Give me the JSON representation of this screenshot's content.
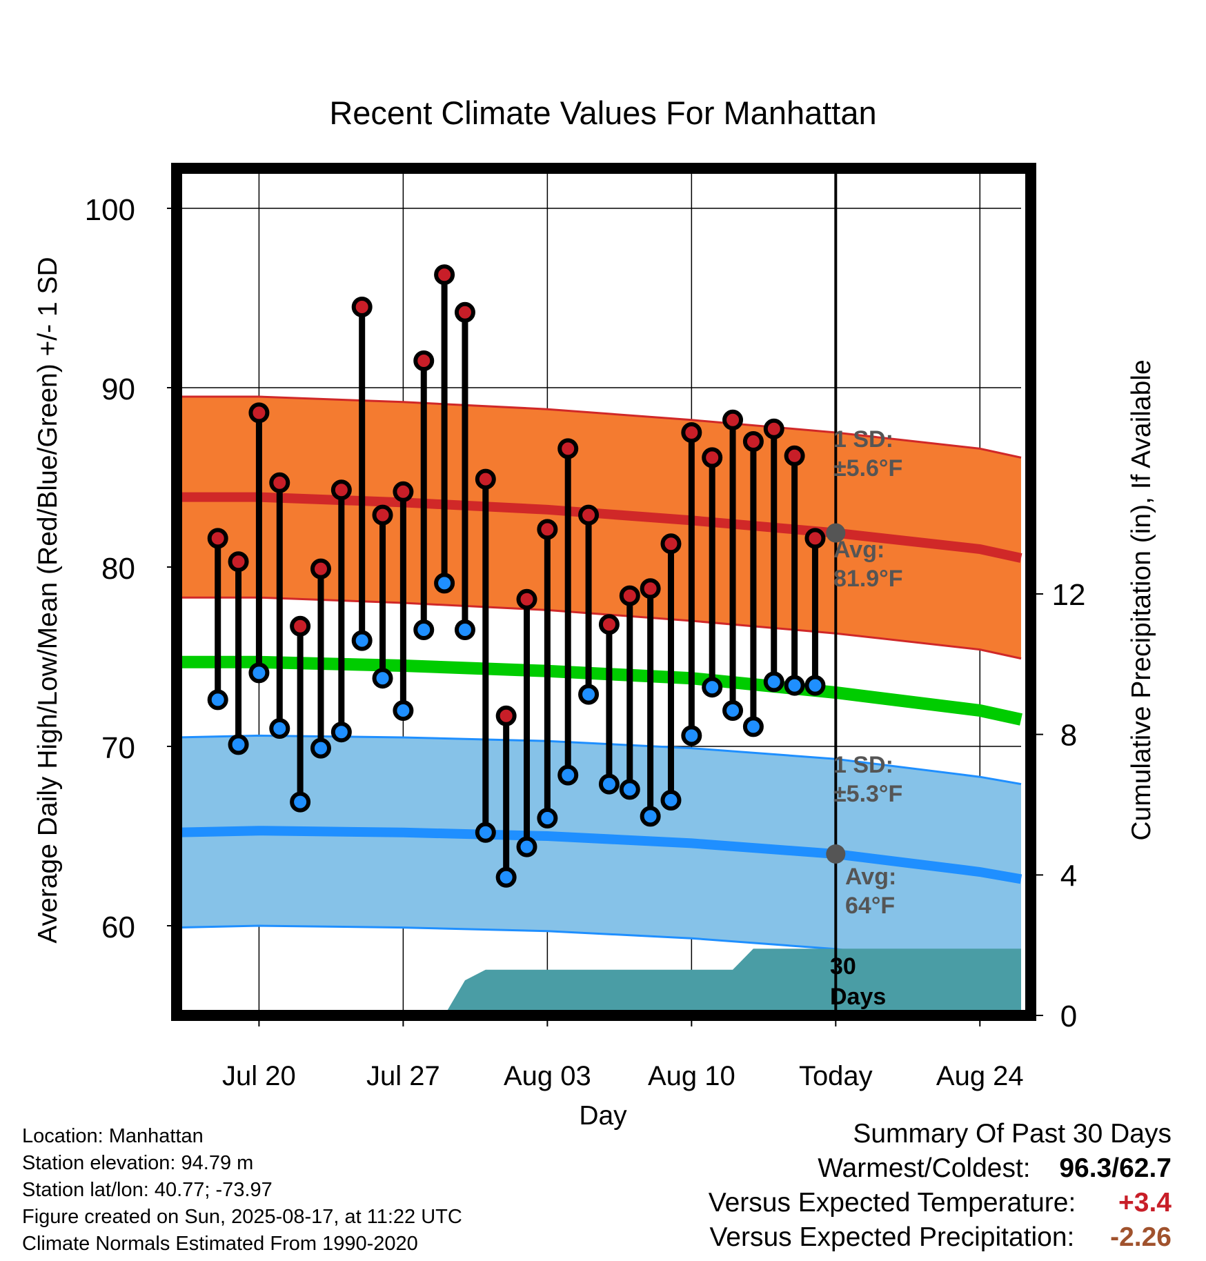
{
  "chart_data": {
    "type": "line",
    "title": "Recent Climate Values For Manhattan",
    "xlabel": "Day",
    "ylabel_left": "Average Daily High/Low/Mean (Red/Blue/Green) +/- 1 SD",
    "ylabel_right": "Cumulative Precipitation (in), If Available",
    "x_range": [
      "2025-07-16",
      "2025-08-26"
    ],
    "ylim_left": [
      55,
      102
    ],
    "ylim_right": [
      0,
      24
    ],
    "grid": true,
    "x_ticks": [
      {
        "date": "2025-07-20",
        "label": "Jul 20"
      },
      {
        "date": "2025-07-27",
        "label": "Jul 27"
      },
      {
        "date": "2025-08-03",
        "label": "Aug 03"
      },
      {
        "date": "2025-08-10",
        "label": "Aug 10"
      },
      {
        "date": "2025-08-17",
        "label": "Today"
      },
      {
        "date": "2025-08-24",
        "label": "Aug 24"
      }
    ],
    "y_ticks_left": [
      60,
      70,
      80,
      90,
      100
    ],
    "y_ticks_right": [
      0,
      4,
      8,
      12
    ],
    "today": "2025-08-17",
    "daily_highs_lows": [
      {
        "date": "2025-07-18",
        "high": 81.6,
        "low": 72.6
      },
      {
        "date": "2025-07-19",
        "high": 80.3,
        "low": 70.1
      },
      {
        "date": "2025-07-20",
        "high": 88.6,
        "low": 74.1
      },
      {
        "date": "2025-07-21",
        "high": 84.7,
        "low": 71.0
      },
      {
        "date": "2025-07-22",
        "high": 76.7,
        "low": 66.9
      },
      {
        "date": "2025-07-23",
        "high": 79.9,
        "low": 69.9
      },
      {
        "date": "2025-07-24",
        "high": 84.3,
        "low": 70.8
      },
      {
        "date": "2025-07-25",
        "high": 94.5,
        "low": 75.9
      },
      {
        "date": "2025-07-26",
        "high": 82.9,
        "low": 73.8
      },
      {
        "date": "2025-07-27",
        "high": 84.2,
        "low": 72.0
      },
      {
        "date": "2025-07-28",
        "high": 91.5,
        "low": 76.5
      },
      {
        "date": "2025-07-29",
        "high": 96.3,
        "low": 79.1
      },
      {
        "date": "2025-07-30",
        "high": 94.2,
        "low": 76.5
      },
      {
        "date": "2025-07-31",
        "high": 84.9,
        "low": 65.2
      },
      {
        "date": "2025-08-01",
        "high": 71.7,
        "low": 62.7
      },
      {
        "date": "2025-08-02",
        "high": 78.2,
        "low": 64.4
      },
      {
        "date": "2025-08-03",
        "high": 82.1,
        "low": 66.0
      },
      {
        "date": "2025-08-04",
        "high": 86.6,
        "low": 68.4
      },
      {
        "date": "2025-08-05",
        "high": 82.9,
        "low": 72.9
      },
      {
        "date": "2025-08-06",
        "high": 76.8,
        "low": 67.9
      },
      {
        "date": "2025-08-07",
        "high": 78.4,
        "low": 67.6
      },
      {
        "date": "2025-08-08",
        "high": 78.8,
        "low": 66.1
      },
      {
        "date": "2025-08-09",
        "high": 81.3,
        "low": 67.0
      },
      {
        "date": "2025-08-10",
        "high": 87.5,
        "low": 70.6
      },
      {
        "date": "2025-08-11",
        "high": 86.1,
        "low": 73.3
      },
      {
        "date": "2025-08-12",
        "high": 88.2,
        "low": 72.0
      },
      {
        "date": "2025-08-13",
        "high": 87.0,
        "low": 71.1
      },
      {
        "date": "2025-08-14",
        "high": 87.7,
        "low": 73.6
      },
      {
        "date": "2025-08-15",
        "high": 86.2,
        "low": 73.4
      },
      {
        "date": "2025-08-16",
        "high": 81.6,
        "low": 73.4
      }
    ],
    "normal_high_mean": [
      {
        "date": "2025-07-16",
        "value": 83.9
      },
      {
        "date": "2025-07-20",
        "value": 83.9
      },
      {
        "date": "2025-07-27",
        "value": 83.6
      },
      {
        "date": "2025-08-03",
        "value": 83.2
      },
      {
        "date": "2025-08-10",
        "value": 82.6
      },
      {
        "date": "2025-08-17",
        "value": 81.9
      },
      {
        "date": "2025-08-24",
        "value": 81.0
      },
      {
        "date": "2025-08-26",
        "value": 80.5
      }
    ],
    "normal_high_sd": 5.6,
    "normal_low_mean": [
      {
        "date": "2025-07-16",
        "value": 65.2
      },
      {
        "date": "2025-07-20",
        "value": 65.3
      },
      {
        "date": "2025-07-27",
        "value": 65.2
      },
      {
        "date": "2025-08-03",
        "value": 65.0
      },
      {
        "date": "2025-08-10",
        "value": 64.6
      },
      {
        "date": "2025-08-17",
        "value": 64.0
      },
      {
        "date": "2025-08-24",
        "value": 63.0
      },
      {
        "date": "2025-08-26",
        "value": 62.6
      }
    ],
    "normal_low_sd": 5.3,
    "normal_mean": [
      {
        "date": "2025-07-16",
        "value": 74.7
      },
      {
        "date": "2025-07-20",
        "value": 74.7
      },
      {
        "date": "2025-07-27",
        "value": 74.5
      },
      {
        "date": "2025-08-03",
        "value": 74.2
      },
      {
        "date": "2025-08-10",
        "value": 73.8
      },
      {
        "date": "2025-08-17",
        "value": 73.0
      },
      {
        "date": "2025-08-24",
        "value": 72.0
      },
      {
        "date": "2025-08-26",
        "value": 71.5
      }
    ],
    "cumulative_precip": [
      {
        "date": "2025-07-16",
        "value": 0
      },
      {
        "date": "2025-07-29",
        "value": 0
      },
      {
        "date": "2025-07-30",
        "value": 1.0
      },
      {
        "date": "2025-07-31",
        "value": 1.3
      },
      {
        "date": "2025-08-12",
        "value": 1.3
      },
      {
        "date": "2025-08-13",
        "value": 1.9
      },
      {
        "date": "2025-08-26",
        "value": 1.9
      }
    ],
    "annotations": {
      "high_sd": [
        "1 SD:",
        "±5.6°F"
      ],
      "high_avg": [
        "Avg:",
        "81.9°F"
      ],
      "low_sd": [
        "1 SD:",
        "±5.3°F"
      ],
      "low_avg": [
        "Avg:",
        "64°F"
      ],
      "precip_days": [
        "30",
        "Days"
      ]
    },
    "colors": {
      "high_band": "#f47b30",
      "high_line": "#d02828",
      "low_band": "#86c2e8",
      "low_line": "#1f8fff",
      "mean_line": "#00cc00",
      "precip_fill": "#4a9da5",
      "high_marker": "#c81e28",
      "low_marker": "#1f8fff",
      "annotation_text": "#555555",
      "today_marker": "#555555"
    }
  },
  "info": {
    "location": "Location: Manhattan",
    "elevation": "Station elevation: 94.79 m",
    "latlon": "Station lat/lon: 40.77; -73.97",
    "created": "Figure created on Sun, 2025-08-17, at 11:22 UTC",
    "normals": "Climate Normals Estimated From 1990-2020"
  },
  "summary": {
    "heading": "Summary Of Past 30 Days",
    "warm_cold_label": "Warmest/Coldest:",
    "warmest": "96.3",
    "separator": "/",
    "coldest": "62.7",
    "temp_label": "Versus Expected Temperature:",
    "temp_value": "+3.4",
    "temp_color": "#c81e28",
    "precip_label": "Versus Expected Precipitation:",
    "precip_value": "-2.26",
    "precip_color": "#a0522d"
  }
}
